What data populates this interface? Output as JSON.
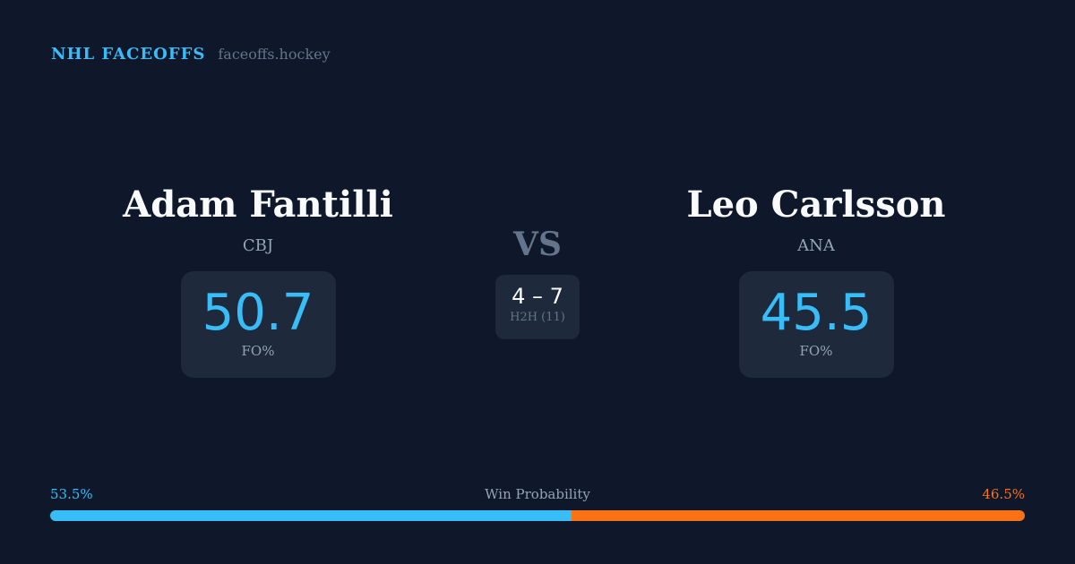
{
  "brand": {
    "title": "NHL FACEOFFS",
    "domain": "faceoffs.hockey"
  },
  "players": [
    {
      "name": "Adam Fantilli",
      "team": "CBJ",
      "fo_pct": "50.7",
      "fo_label": "FO%"
    },
    {
      "name": "Leo Carlsson",
      "team": "ANA",
      "fo_pct": "45.5",
      "fo_label": "FO%"
    }
  ],
  "vs_label": "VS",
  "h2h": {
    "score": "4 – 7",
    "label": "H2H (11)"
  },
  "win_probability": {
    "label": "Win Probability",
    "left": "53.5%",
    "right": "46.5%",
    "left_value": 53.5,
    "right_value": 46.5,
    "left_color": "#38bdf8",
    "right_color": "#f97316"
  }
}
